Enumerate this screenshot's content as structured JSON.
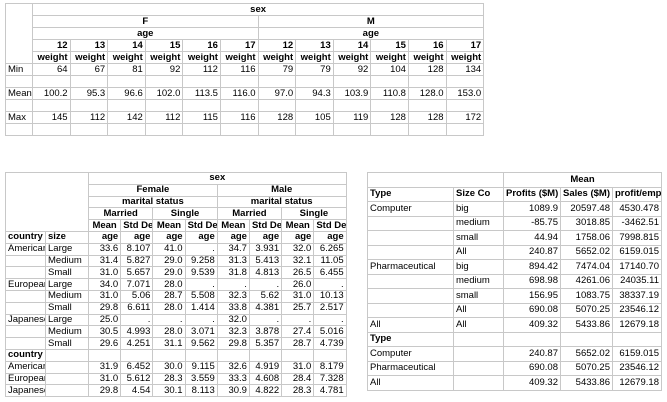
{
  "table1": {
    "top": "sex",
    "groups": [
      "F",
      "M"
    ],
    "group_sub": [
      "age",
      "age"
    ],
    "ages": [
      12,
      13,
      14,
      15,
      16,
      17,
      12,
      13,
      14,
      15,
      16,
      17
    ],
    "measure": [
      "weight",
      "weight",
      "weight",
      "weight",
      "weight",
      "weight",
      "weight",
      "weight",
      "weight",
      "weight",
      "weight",
      "weight"
    ],
    "rows": [
      {
        "label": "Min",
        "values": [
          "64",
          "67",
          "81",
          "92",
          "112",
          "116",
          "79",
          "79",
          "92",
          "104",
          "128",
          "134"
        ]
      },
      {
        "label": "Mean",
        "values": [
          "100.2",
          "95.3",
          "96.6",
          "102.0",
          "113.5",
          "116.0",
          "97.0",
          "94.3",
          "103.9",
          "110.8",
          "128.0",
          "153.0"
        ]
      },
      {
        "label": "Max",
        "values": [
          "145",
          "112",
          "142",
          "112",
          "115",
          "116",
          "128",
          "105",
          "119",
          "128",
          "128",
          "172"
        ]
      }
    ]
  },
  "table2": {
    "top": "sex",
    "groups": [
      "Female",
      "Male"
    ],
    "group_sub": [
      "marital status",
      "marital status"
    ],
    "statuses": [
      "Married",
      "Single",
      "Married",
      "Single"
    ],
    "stats": [
      "Mean",
      "Std Dev",
      "Mean",
      "Std Dev",
      "Mean",
      "Std Dev",
      "Mean",
      "Std Dev"
    ],
    "row_headers": [
      "country",
      "size"
    ],
    "units": [
      "age",
      "age",
      "age",
      "age",
      "age",
      "age",
      "age",
      "age"
    ],
    "rows": [
      {
        "country": "American",
        "size": "Large",
        "values": [
          "33.6",
          "8.107",
          "41.0",
          ".",
          "34.7",
          "3.931",
          "32.0",
          "6.265"
        ]
      },
      {
        "size": "Medium",
        "values": [
          "31.4",
          "5.827",
          "29.0",
          "9.258",
          "31.3",
          "5.413",
          "32.1",
          "11.05"
        ]
      },
      {
        "size": "Small",
        "values": [
          "31.0",
          "5.657",
          "29.0",
          "9.539",
          "31.8",
          "4.813",
          "26.5",
          "6.455"
        ]
      },
      {
        "country": "European",
        "size": "Large",
        "values": [
          "34.0",
          "7.071",
          "28.0",
          ".",
          ".",
          ".",
          "26.0",
          "."
        ]
      },
      {
        "size": "Medium",
        "values": [
          "31.0",
          "5.06",
          "28.7",
          "5.508",
          "32.3",
          "5.62",
          "31.0",
          "10.13"
        ]
      },
      {
        "size": "Small",
        "values": [
          "29.8",
          "6.611",
          "28.0",
          "1.414",
          "33.8",
          "4.381",
          "25.7",
          "2.517"
        ]
      },
      {
        "country": "Japanese",
        "size": "Large",
        "values": [
          "25.0",
          ".",
          ".",
          ".",
          "32.0",
          ".",
          ".",
          "."
        ]
      },
      {
        "size": "Medium",
        "values": [
          "30.5",
          "4.993",
          "28.0",
          "3.071",
          "32.3",
          "3.878",
          "27.4",
          "5.016"
        ]
      },
      {
        "size": "Small",
        "values": [
          "29.6",
          "4.251",
          "31.1",
          "9.562",
          "29.8",
          "5.357",
          "28.7",
          "4.739"
        ]
      }
    ],
    "section2_header": "country",
    "rows2": [
      {
        "country": "American",
        "values": [
          "31.9",
          "6.452",
          "30.0",
          "9.115",
          "32.6",
          "4.919",
          "31.0",
          "8.179"
        ]
      },
      {
        "country": "European",
        "values": [
          "31.0",
          "5.612",
          "28.3",
          "3.559",
          "33.3",
          "4.608",
          "28.4",
          "7.328"
        ]
      },
      {
        "country": "Japanese",
        "values": [
          "29.8",
          "4.54",
          "30.1",
          "8.113",
          "30.9",
          "4.822",
          "28.3",
          "4.781"
        ]
      }
    ]
  },
  "table3": {
    "top": "Mean",
    "columns": [
      "Type",
      "Size Co",
      "Profits ($M)",
      "Sales ($M)",
      "profit/emp"
    ],
    "rows": [
      {
        "type": "Computer",
        "size": "big",
        "values": [
          "1089.9",
          "20597.48",
          "4530.478"
        ]
      },
      {
        "size": "medium",
        "values": [
          "-85.75",
          "3018.85",
          "-3462.51"
        ]
      },
      {
        "size": "small",
        "values": [
          "44.94",
          "1758.06",
          "7998.815"
        ]
      },
      {
        "size": "All",
        "values": [
          "240.87",
          "5652.02",
          "6159.015"
        ]
      },
      {
        "type": "Pharmaceutical",
        "size": "big",
        "values": [
          "894.42",
          "7474.04",
          "17140.70"
        ]
      },
      {
        "size": "medium",
        "values": [
          "698.98",
          "4261.06",
          "24035.11"
        ]
      },
      {
        "size": "small",
        "values": [
          "156.95",
          "1083.75",
          "38337.19"
        ]
      },
      {
        "size": "All",
        "values": [
          "690.08",
          "5070.25",
          "23546.12"
        ]
      },
      {
        "type": "All",
        "size": "All",
        "values": [
          "409.32",
          "5433.86",
          "12679.18"
        ]
      }
    ],
    "section2_header": "Type",
    "rows2": [
      {
        "type": "Computer",
        "values": [
          "240.87",
          "5652.02",
          "6159.015"
        ]
      },
      {
        "type": "Pharmaceutical",
        "values": [
          "690.08",
          "5070.25",
          "23546.12"
        ]
      },
      {
        "type": "All",
        "values": [
          "409.32",
          "5433.86",
          "12679.18"
        ]
      }
    ]
  }
}
